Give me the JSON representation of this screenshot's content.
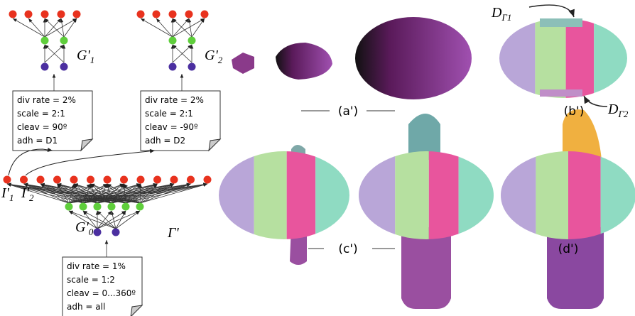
{
  "networks": [
    {
      "label": {
        "base": "G'",
        "sub": "1"
      },
      "note": [
        "div rate = 2%",
        "scale = 2:1",
        "cleav = 90º",
        "adh = D1"
      ]
    },
    {
      "label": {
        "base": "G'",
        "sub": "2"
      },
      "note": [
        "div rate = 2%",
        "scale = 2:1",
        "cleav = -90º",
        "adh = D2"
      ]
    }
  ],
  "gamma": {
    "label": "Γ'",
    "inputs": [
      {
        "base": "I'",
        "sub": "1"
      },
      {
        "base": "I'",
        "sub": "2"
      }
    ],
    "sublabel": {
      "base": "G'",
      "sub": "0"
    },
    "note": [
      "div rate = 1%",
      "scale = 1:2",
      "cleav = 0...360º",
      "adh = all"
    ]
  },
  "panels": {
    "a": "(a')",
    "b": "(b')",
    "c": "(c')",
    "d": "(d')"
  },
  "domains": [
    {
      "base": "D",
      "sub": "Γ1"
    },
    {
      "base": "D",
      "sub": "Γ2"
    }
  ]
}
